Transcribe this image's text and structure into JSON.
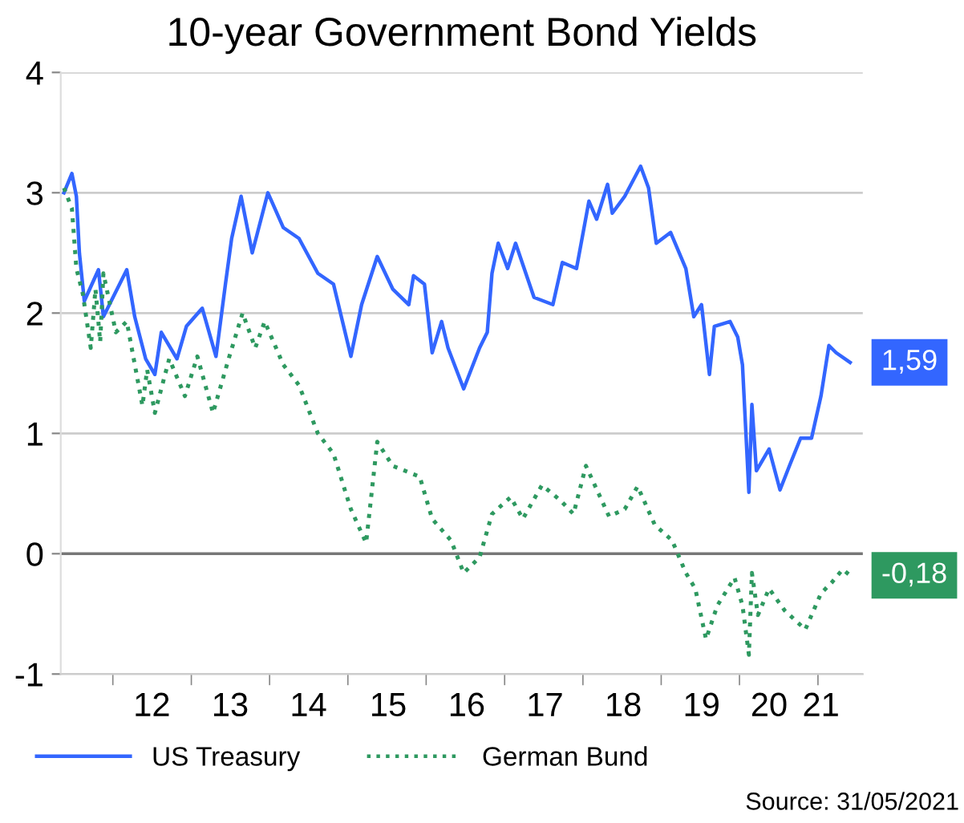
{
  "chart_data": {
    "type": "line",
    "title": "10-year Government Bond Yields",
    "series": [
      {
        "name": "US Treasury",
        "color": "#3366ff",
        "line_style": "solid",
        "x": [
          "2011-05-18",
          "2011-06-24",
          "2011-07-15",
          "2011-07-29",
          "2011-08-21",
          "2011-10-26",
          "2011-11-18",
          "2012-03-06",
          "2012-04-12",
          "2012-06-02",
          "2012-07-15",
          "2012-08-14",
          "2012-10-26",
          "2012-12-09",
          "2013-02-21",
          "2013-04-26",
          "2013-06-09",
          "2013-07-08",
          "2013-08-21",
          "2013-10-12",
          "2013-12-24",
          "2014-03-06",
          "2014-05-18",
          "2014-08-14",
          "2014-10-26",
          "2015-01-15",
          "2015-03-06",
          "2015-05-18",
          "2015-07-29",
          "2015-10-12",
          "2015-11-03",
          "2015-12-24",
          "2016-01-29",
          "2016-03-13",
          "2016-04-12",
          "2016-06-24",
          "2016-09-06",
          "2016-10-12",
          "2016-11-03",
          "2016-12-02",
          "2017-01-15",
          "2017-02-21",
          "2017-05-18",
          "2017-08-14",
          "2017-09-27",
          "2017-12-02",
          "2018-01-29",
          "2018-03-06",
          "2018-04-26",
          "2018-05-18",
          "2018-07-15",
          "2018-09-27",
          "2018-11-03",
          "2018-12-09",
          "2019-02-14",
          "2019-04-26",
          "2019-06-02",
          "2019-07-08",
          "2019-08-14",
          "2019-09-06",
          "2019-11-18",
          "2019-12-24",
          "2020-01-15",
          "2020-02-14",
          "2020-02-28",
          "2020-03-20",
          "2020-05-18",
          "2020-07-08",
          "2020-08-21",
          "2020-10-12",
          "2020-12-02",
          "2021-01-15",
          "2021-02-21",
          "2021-03-27",
          "2021-05-31"
        ],
        "values": [
          3.0,
          3.16,
          2.97,
          2.5,
          2.1,
          2.36,
          1.97,
          2.36,
          1.97,
          1.62,
          1.49,
          1.84,
          1.62,
          1.89,
          2.04,
          1.64,
          2.24,
          2.62,
          2.97,
          2.5,
          3.0,
          2.71,
          2.62,
          2.33,
          2.24,
          1.64,
          2.07,
          2.47,
          2.2,
          2.07,
          2.31,
          2.24,
          1.67,
          1.93,
          1.71,
          1.37,
          1.71,
          1.84,
          2.33,
          2.58,
          2.37,
          2.58,
          2.13,
          2.07,
          2.42,
          2.37,
          2.93,
          2.78,
          3.07,
          2.83,
          2.97,
          3.22,
          3.04,
          2.58,
          2.67,
          2.37,
          1.97,
          2.07,
          1.49,
          1.89,
          1.93,
          1.8,
          1.57,
          0.51,
          1.24,
          0.69,
          0.87,
          0.53,
          0.73,
          0.96,
          0.96,
          1.31,
          1.73,
          1.67,
          1.59
        ]
      },
      {
        "name": "German Bund",
        "color": "#2e9960",
        "line_style": "dotted",
        "x": [
          "2011-05-18",
          "2011-06-24",
          "2011-07-15",
          "2011-08-14",
          "2011-09-20",
          "2011-10-12",
          "2011-11-03",
          "2011-11-18",
          "2012-01-15",
          "2012-03-06",
          "2012-05-18",
          "2012-06-09",
          "2012-07-15",
          "2012-09-20",
          "2012-12-02",
          "2013-01-29",
          "2013-04-12",
          "2013-06-24",
          "2013-08-28",
          "2013-10-26",
          "2013-12-09",
          "2014-03-06",
          "2014-05-18",
          "2014-08-14",
          "2014-10-26",
          "2015-01-15",
          "2015-03-27",
          "2015-05-18",
          "2015-07-29",
          "2015-12-02",
          "2016-01-29",
          "2016-04-26",
          "2016-06-24",
          "2016-09-06",
          "2016-11-03",
          "2017-01-29",
          "2017-03-27",
          "2017-06-24",
          "2017-09-20",
          "2017-11-18",
          "2018-01-15",
          "2018-05-03",
          "2018-07-15",
          "2018-09-13",
          "2018-12-02",
          "2019-02-21",
          "2019-04-26",
          "2019-06-09",
          "2019-07-29",
          "2019-09-20",
          "2019-12-09",
          "2020-01-15",
          "2020-02-14",
          "2020-02-28",
          "2020-03-27",
          "2020-05-18",
          "2020-07-29",
          "2020-11-03",
          "2021-01-15",
          "2021-03-06",
          "2021-04-26",
          "2021-05-31"
        ],
        "values": [
          3.04,
          2.87,
          2.37,
          2.16,
          1.71,
          2.2,
          1.76,
          2.33,
          1.84,
          1.93,
          1.23,
          1.53,
          1.17,
          1.62,
          1.31,
          1.64,
          1.17,
          1.62,
          2.0,
          1.71,
          1.93,
          1.57,
          1.4,
          1.0,
          0.83,
          0.37,
          0.09,
          0.93,
          0.73,
          0.64,
          0.29,
          0.11,
          -0.16,
          -0.03,
          0.33,
          0.47,
          0.29,
          0.57,
          0.44,
          0.33,
          0.73,
          0.31,
          0.37,
          0.56,
          0.24,
          0.11,
          -0.16,
          -0.29,
          -0.71,
          -0.43,
          -0.2,
          -0.43,
          -0.84,
          -0.16,
          -0.51,
          -0.29,
          -0.47,
          -0.63,
          -0.33,
          -0.24,
          -0.13,
          -0.18
        ]
      }
    ],
    "xlim": [
      "2011-05-03",
      "2021-07-29"
    ],
    "xticks": [
      {
        "value": "2012-07-01",
        "label": "12"
      },
      {
        "value": "2013-07-01",
        "label": "13"
      },
      {
        "value": "2014-07-01",
        "label": "14"
      },
      {
        "value": "2015-07-08",
        "label": "15"
      },
      {
        "value": "2016-07-08",
        "label": "16"
      },
      {
        "value": "2017-07-08",
        "label": "17"
      },
      {
        "value": "2018-07-08",
        "label": "18"
      },
      {
        "value": "2019-07-08",
        "label": "19"
      },
      {
        "value": "2020-05-18",
        "label": "20"
      },
      {
        "value": "2021-01-15",
        "label": "21"
      },
      {
        "value": "2012-01-01",
        "label": null
      },
      {
        "value": "2013-01-01",
        "label": null
      },
      {
        "value": "2014-01-01",
        "label": null
      },
      {
        "value": "2015-01-01",
        "label": null
      },
      {
        "value": "2016-01-01",
        "label": null
      },
      {
        "value": "2017-01-01",
        "label": null
      },
      {
        "value": "2018-01-01",
        "label": null
      },
      {
        "value": "2019-01-01",
        "label": null
      },
      {
        "value": "2020-01-01",
        "label": null
      },
      {
        "value": "2021-01-01",
        "label": null
      }
    ],
    "ylim": [
      -1,
      4
    ],
    "yticks": [
      -1,
      0,
      1,
      2,
      3,
      4
    ],
    "grid": "y",
    "ref_lines": [
      {
        "axis": "y",
        "value": 0,
        "color": "#777777"
      }
    ],
    "legend": "bottom left",
    "annotations": [
      {
        "text": "1,59",
        "x": "2021-05-31",
        "y": 1.59
      },
      {
        "text": "-0,18",
        "x": "2021-05-31",
        "y": -0.18
      },
      "Source: 31/05/2021"
    ]
  }
}
